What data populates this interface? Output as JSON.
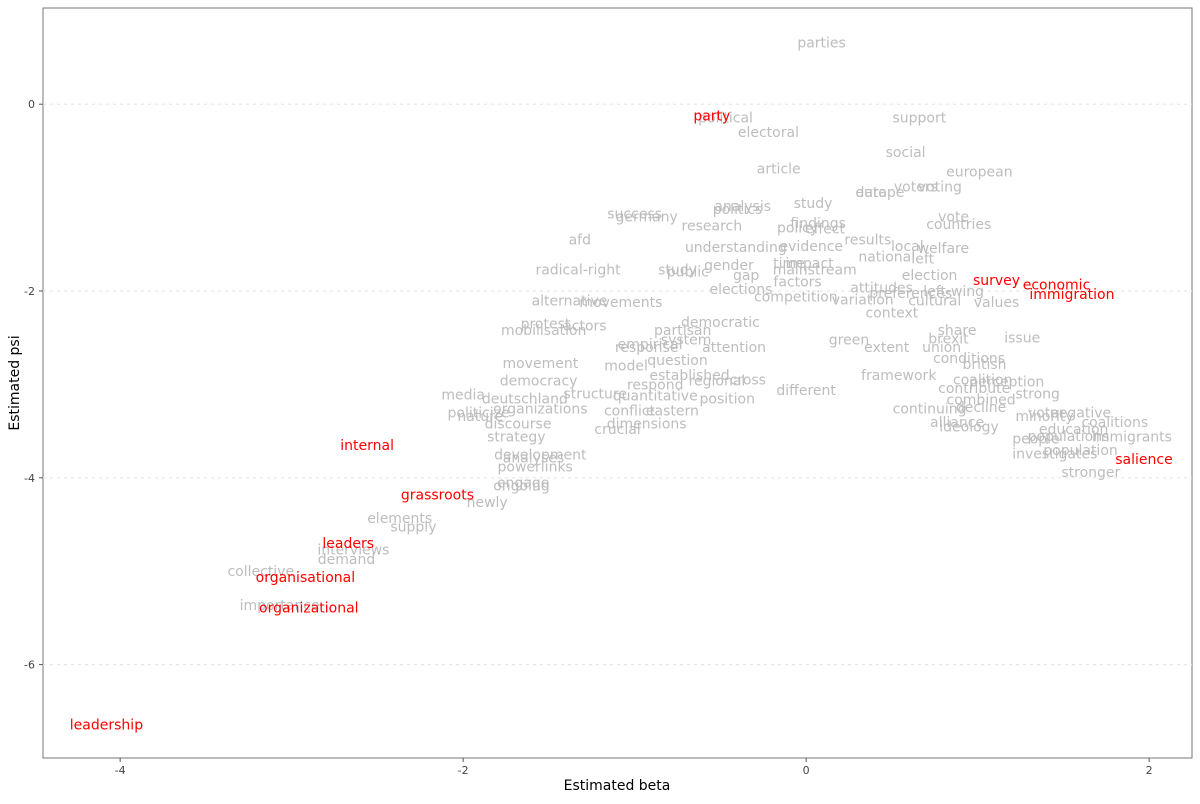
{
  "chart_data": {
    "type": "scatter",
    "title": "",
    "xlabel": "Estimated beta",
    "ylabel": "Estimated psi",
    "xlim": [
      -4.45,
      2.25
    ],
    "ylim": [
      -7.0,
      1.03
    ],
    "x_ticks": [
      -4,
      -2,
      0,
      2
    ],
    "y_ticks": [
      0,
      -2,
      -4,
      -6
    ],
    "grid": "horizontal dotted",
    "legend": "none",
    "highlight_color": "#ff0000",
    "base_color": "#bdbdbd",
    "highlighted_words": [
      {
        "label": "party",
        "x": -0.55,
        "y": -0.12
      },
      {
        "label": "survey",
        "x": 1.11,
        "y": -1.88
      },
      {
        "label": "economic",
        "x": 1.46,
        "y": -1.93
      },
      {
        "label": "immigration",
        "x": 1.55,
        "y": -2.03
      },
      {
        "label": "salience",
        "x": 1.97,
        "y": -3.8
      },
      {
        "label": "internal",
        "x": -2.56,
        "y": -3.65
      },
      {
        "label": "grassroots",
        "x": -2.15,
        "y": -4.18
      },
      {
        "label": "leaders",
        "x": -2.67,
        "y": -4.7
      },
      {
        "label": "organisational",
        "x": -2.92,
        "y": -5.06
      },
      {
        "label": "organizational",
        "x": -2.9,
        "y": -5.39
      },
      {
        "label": "leadership",
        "x": -4.08,
        "y": -6.64
      }
    ],
    "words": [
      {
        "label": "parties",
        "x": 0.09,
        "y": 0.66
      },
      {
        "label": "political",
        "x": -0.47,
        "y": -0.14
      },
      {
        "label": "support",
        "x": 0.66,
        "y": -0.14
      },
      {
        "label": "electoral",
        "x": -0.22,
        "y": -0.3
      },
      {
        "label": "social",
        "x": 0.58,
        "y": -0.51
      },
      {
        "label": "article",
        "x": -0.16,
        "y": -0.69
      },
      {
        "label": "european",
        "x": 1.01,
        "y": -0.72
      },
      {
        "label": "voters",
        "x": 0.64,
        "y": -0.88
      },
      {
        "label": "voting",
        "x": 0.78,
        "y": -0.88
      },
      {
        "label": "data",
        "x": 0.38,
        "y": -0.94
      },
      {
        "label": "europe",
        "x": 0.43,
        "y": -0.94
      },
      {
        "label": "study",
        "x": 0.04,
        "y": -1.06
      },
      {
        "label": "analysis",
        "x": -0.37,
        "y": -1.09
      },
      {
        "label": "politics",
        "x": -0.4,
        "y": -1.12
      },
      {
        "label": "success",
        "x": -1.0,
        "y": -1.17
      },
      {
        "label": "germany",
        "x": -0.93,
        "y": -1.2
      },
      {
        "label": "vote",
        "x": 0.86,
        "y": -1.2
      },
      {
        "label": "findings",
        "x": 0.07,
        "y": -1.27
      },
      {
        "label": "countries",
        "x": 0.89,
        "y": -1.28
      },
      {
        "label": "research",
        "x": -0.55,
        "y": -1.3
      },
      {
        "label": "policy",
        "x": -0.05,
        "y": -1.32
      },
      {
        "label": "effect",
        "x": 0.11,
        "y": -1.33
      },
      {
        "label": "afd",
        "x": -1.32,
        "y": -1.45
      },
      {
        "label": "results",
        "x": 0.36,
        "y": -1.45
      },
      {
        "label": "understanding",
        "x": -0.41,
        "y": -1.53
      },
      {
        "label": "evidence",
        "x": 0.03,
        "y": -1.52
      },
      {
        "label": "local",
        "x": 0.59,
        "y": -1.52
      },
      {
        "label": "welfare",
        "x": 0.8,
        "y": -1.54
      },
      {
        "label": "national",
        "x": 0.47,
        "y": -1.63
      },
      {
        "label": "left",
        "x": 0.68,
        "y": -1.65
      },
      {
        "label": "gender",
        "x": -0.45,
        "y": -1.72
      },
      {
        "label": "time",
        "x": -0.1,
        "y": -1.7
      },
      {
        "label": "impact",
        "x": 0.02,
        "y": -1.7
      },
      {
        "label": "radical-right",
        "x": -1.33,
        "y": -1.77
      },
      {
        "label": "public",
        "x": -0.69,
        "y": -1.79
      },
      {
        "label": "study",
        "x": -0.75,
        "y": -1.77
      },
      {
        "label": "mainstream",
        "x": 0.05,
        "y": -1.77
      },
      {
        "label": "gap",
        "x": -0.35,
        "y": -1.83
      },
      {
        "label": "election",
        "x": 0.72,
        "y": -1.83
      },
      {
        "label": "factors",
        "x": -0.05,
        "y": -1.9
      },
      {
        "label": "attitudes",
        "x": 0.44,
        "y": -1.96
      },
      {
        "label": "elections",
        "x": -0.38,
        "y": -1.98
      },
      {
        "label": "left-wing",
        "x": 0.86,
        "y": -2.0
      },
      {
        "label": "preferences",
        "x": 0.61,
        "y": -2.02
      },
      {
        "label": "alternative",
        "x": -1.38,
        "y": -2.1
      },
      {
        "label": "movements",
        "x": -1.08,
        "y": -2.12
      },
      {
        "label": "cultural",
        "x": 0.75,
        "y": -2.1
      },
      {
        "label": "values",
        "x": 1.11,
        "y": -2.12
      },
      {
        "label": "competition",
        "x": -0.06,
        "y": -2.06
      },
      {
        "label": "variation",
        "x": 0.33,
        "y": -2.09
      },
      {
        "label": "context",
        "x": 0.5,
        "y": -2.23
      },
      {
        "label": "protest",
        "x": -1.52,
        "y": -2.35
      },
      {
        "label": "actors",
        "x": -1.29,
        "y": -2.37
      },
      {
        "label": "mobilisation",
        "x": -1.53,
        "y": -2.42
      },
      {
        "label": "partisan",
        "x": -0.72,
        "y": -2.42
      },
      {
        "label": "share",
        "x": 0.88,
        "y": -2.42
      },
      {
        "label": "issue",
        "x": 1.26,
        "y": -2.5
      },
      {
        "label": "brexit",
        "x": 0.83,
        "y": -2.51
      },
      {
        "label": "empirical",
        "x": -0.91,
        "y": -2.57
      },
      {
        "label": "response",
        "x": -0.93,
        "y": -2.6
      },
      {
        "label": "system",
        "x": -0.7,
        "y": -2.52
      },
      {
        "label": "attention",
        "x": -0.42,
        "y": -2.6
      },
      {
        "label": "extent",
        "x": 0.47,
        "y": -2.6
      },
      {
        "label": "union",
        "x": 0.79,
        "y": -2.6
      },
      {
        "label": "democratic",
        "x": -0.5,
        "y": -2.33
      },
      {
        "label": "green",
        "x": 0.25,
        "y": -2.52
      },
      {
        "label": "question",
        "x": -0.75,
        "y": -2.74
      },
      {
        "label": "movement",
        "x": -1.55,
        "y": -2.77
      },
      {
        "label": "model",
        "x": -1.05,
        "y": -2.8
      },
      {
        "label": "established",
        "x": -0.68,
        "y": -2.9
      },
      {
        "label": "cross",
        "x": -0.34,
        "y": -2.95
      },
      {
        "label": "conditions",
        "x": 0.95,
        "y": -2.72
      },
      {
        "label": "british",
        "x": 1.04,
        "y": -2.78
      },
      {
        "label": "coalition",
        "x": 1.03,
        "y": -2.95
      },
      {
        "label": "perception",
        "x": 1.17,
        "y": -2.97
      },
      {
        "label": "democracy",
        "x": -1.56,
        "y": -2.96
      },
      {
        "label": "media",
        "x": -2.0,
        "y": -3.11
      },
      {
        "label": "respond",
        "x": -0.88,
        "y": -3.0
      },
      {
        "label": "regional",
        "x": -0.52,
        "y": -2.96
      },
      {
        "label": "different",
        "x": 0.0,
        "y": -3.06
      },
      {
        "label": "framework",
        "x": 0.54,
        "y": -2.9
      },
      {
        "label": "contribute",
        "x": 0.98,
        "y": -3.04
      },
      {
        "label": "strong",
        "x": 1.35,
        "y": -3.1
      },
      {
        "label": "deutschland",
        "x": -1.64,
        "y": -3.15
      },
      {
        "label": "structure",
        "x": -1.23,
        "y": -3.1
      },
      {
        "label": "quantitative",
        "x": -0.88,
        "y": -3.12
      },
      {
        "label": "position",
        "x": -0.46,
        "y": -3.15
      },
      {
        "label": "combined",
        "x": 1.02,
        "y": -3.16
      },
      {
        "label": "conflict",
        "x": -1.03,
        "y": -3.28
      },
      {
        "label": "eastern",
        "x": -0.78,
        "y": -3.28
      },
      {
        "label": "organizations",
        "x": -1.55,
        "y": -3.26
      },
      {
        "label": "politicize",
        "x": -1.91,
        "y": -3.3
      },
      {
        "label": "nature",
        "x": -1.9,
        "y": -3.34
      },
      {
        "label": "discourse",
        "x": -1.68,
        "y": -3.42
      },
      {
        "label": "decline",
        "x": 1.02,
        "y": -3.24
      },
      {
        "label": "continuing",
        "x": 0.72,
        "y": -3.26
      },
      {
        "label": "voter",
        "x": 1.4,
        "y": -3.3
      },
      {
        "label": "minority",
        "x": 1.39,
        "y": -3.34
      },
      {
        "label": "negative",
        "x": 1.6,
        "y": -3.3
      },
      {
        "label": "coalitions",
        "x": 1.8,
        "y": -3.4
      },
      {
        "label": "alliance",
        "x": 0.88,
        "y": -3.4
      },
      {
        "label": "ideology",
        "x": 0.95,
        "y": -3.45
      },
      {
        "label": "education",
        "x": 1.56,
        "y": -3.48
      },
      {
        "label": "crucial",
        "x": -1.1,
        "y": -3.48
      },
      {
        "label": "dimensions",
        "x": -0.93,
        "y": -3.42
      },
      {
        "label": "immigrants",
        "x": 1.9,
        "y": -3.56
      },
      {
        "label": "populations",
        "x": 1.53,
        "y": -3.55
      },
      {
        "label": "people",
        "x": 1.34,
        "y": -3.58
      },
      {
        "label": "population",
        "x": 1.6,
        "y": -3.7
      },
      {
        "label": "investigates",
        "x": 1.45,
        "y": -3.74
      },
      {
        "label": "stronger",
        "x": 1.66,
        "y": -3.94
      },
      {
        "label": "strategy",
        "x": -1.69,
        "y": -3.56
      },
      {
        "label": "development",
        "x": -1.55,
        "y": -3.75
      },
      {
        "label": "analyses",
        "x": -1.59,
        "y": -3.78
      },
      {
        "label": "powerlinks",
        "x": -1.58,
        "y": -3.88
      },
      {
        "label": "engage",
        "x": -1.65,
        "y": -4.05
      },
      {
        "label": "ongoing",
        "x": -1.66,
        "y": -4.08
      },
      {
        "label": "newly",
        "x": -1.86,
        "y": -4.26
      },
      {
        "label": "elements",
        "x": -2.37,
        "y": -4.43
      },
      {
        "label": "supply",
        "x": -2.29,
        "y": -4.52
      },
      {
        "label": "interviews",
        "x": -2.64,
        "y": -4.77
      },
      {
        "label": "demand",
        "x": -2.68,
        "y": -4.87
      },
      {
        "label": "collective",
        "x": -3.18,
        "y": -5.0
      },
      {
        "label": "importance",
        "x": -3.07,
        "y": -5.36
      }
    ]
  }
}
